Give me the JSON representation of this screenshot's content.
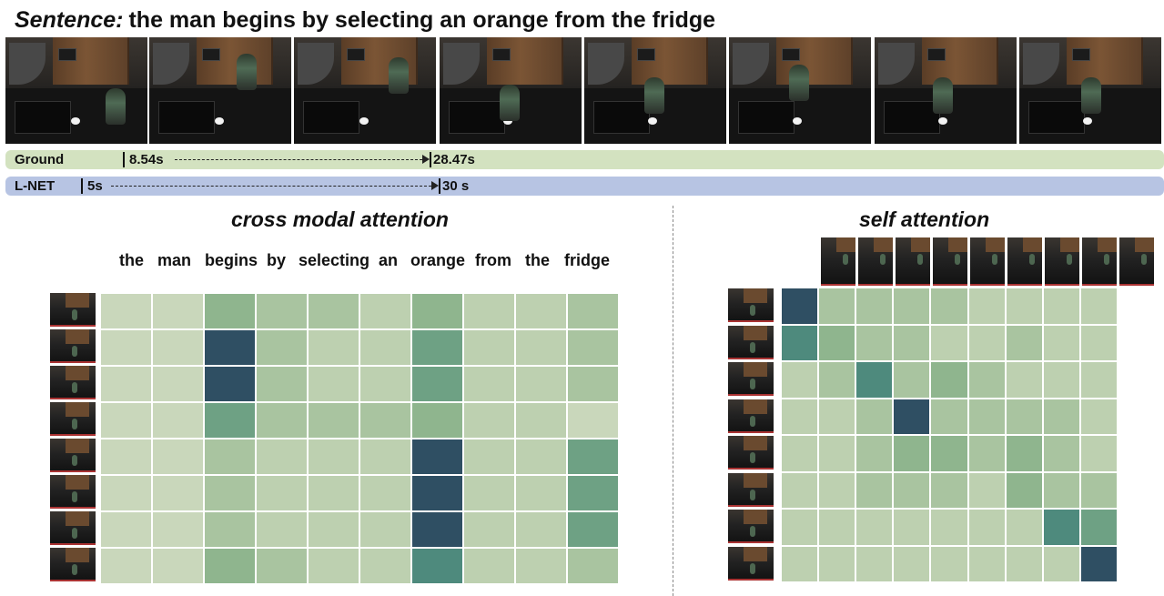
{
  "sentence": {
    "lead": "Sentence:",
    "text": "the man begins by selecting an orange from the fridge"
  },
  "ground": {
    "label": "Ground",
    "start": "8.54s",
    "end": "28.47s"
  },
  "lnet": {
    "label": "L-NET",
    "start": "5s",
    "end": "30 s"
  },
  "cross": {
    "title": "cross modal attention",
    "words": [
      "the",
      "man",
      "begins",
      "by",
      "selecting",
      "an",
      "orange",
      "from",
      "the",
      "fridge"
    ]
  },
  "self": {
    "title": "self attention"
  },
  "palette": [
    "#c9d7bb",
    "#bdd0b0",
    "#a9c4a0",
    "#8fb58e",
    "#6ea184",
    "#4e8a7d",
    "#2f4f63"
  ],
  "chart_data": [
    {
      "type": "heatmap",
      "title": "cross modal attention",
      "x": [
        "the",
        "man",
        "begins",
        "by",
        "selecting",
        "an",
        "orange",
        "from",
        "the",
        "fridge"
      ],
      "y": [
        "frame 1",
        "frame 2",
        "frame 3",
        "frame 4",
        "frame 5",
        "frame 6",
        "frame 7",
        "frame 8"
      ],
      "values": [
        [
          0.05,
          0.05,
          0.55,
          0.3,
          0.25,
          0.2,
          0.55,
          0.15,
          0.1,
          0.3
        ],
        [
          0.05,
          0.05,
          0.95,
          0.25,
          0.15,
          0.15,
          0.7,
          0.1,
          0.1,
          0.25
        ],
        [
          0.05,
          0.05,
          0.95,
          0.25,
          0.15,
          0.15,
          0.6,
          0.1,
          0.1,
          0.25
        ],
        [
          0.05,
          0.05,
          0.7,
          0.35,
          0.25,
          0.25,
          0.55,
          0.2,
          0.1,
          0.05
        ],
        [
          0.05,
          0.05,
          0.25,
          0.1,
          0.1,
          0.1,
          0.98,
          0.1,
          0.1,
          0.7
        ],
        [
          0.05,
          0.05,
          0.25,
          0.1,
          0.1,
          0.1,
          0.98,
          0.1,
          0.1,
          0.7
        ],
        [
          0.05,
          0.05,
          0.3,
          0.1,
          0.1,
          0.1,
          0.98,
          0.1,
          0.1,
          0.7
        ],
        [
          0.05,
          0.05,
          0.55,
          0.25,
          0.2,
          0.15,
          0.85,
          0.1,
          0.1,
          0.25
        ]
      ]
    },
    {
      "type": "heatmap",
      "title": "self attention",
      "x": [
        "frame 1",
        "frame 2",
        "frame 3",
        "frame 4",
        "frame 5",
        "frame 6",
        "frame 7",
        "frame 8",
        "frame 9"
      ],
      "y": [
        "frame 1",
        "frame 2",
        "frame 3",
        "frame 4",
        "frame 5",
        "frame 6",
        "frame 7",
        "frame 8"
      ],
      "values": [
        [
          0.98,
          0.3,
          0.25,
          0.25,
          0.25,
          0.2,
          0.2,
          0.15,
          0.15
        ],
        [
          0.75,
          0.45,
          0.35,
          0.3,
          0.15,
          0.15,
          0.25,
          0.2,
          0.2
        ],
        [
          0.1,
          0.4,
          0.75,
          0.35,
          0.45,
          0.35,
          0.1,
          0.1,
          0.15
        ],
        [
          0.1,
          0.1,
          0.4,
          0.98,
          0.4,
          0.35,
          0.3,
          0.25,
          0.2
        ],
        [
          0.1,
          0.1,
          0.3,
          0.5,
          0.55,
          0.4,
          0.45,
          0.25,
          0.2
        ],
        [
          0.1,
          0.1,
          0.3,
          0.4,
          0.3,
          0.1,
          0.55,
          0.35,
          0.3
        ],
        [
          0.2,
          0.2,
          0.2,
          0.2,
          0.2,
          0.15,
          0.15,
          0.75,
          0.6
        ],
        [
          0.15,
          0.15,
          0.15,
          0.15,
          0.15,
          0.15,
          0.15,
          0.1,
          0.98
        ]
      ]
    }
  ]
}
